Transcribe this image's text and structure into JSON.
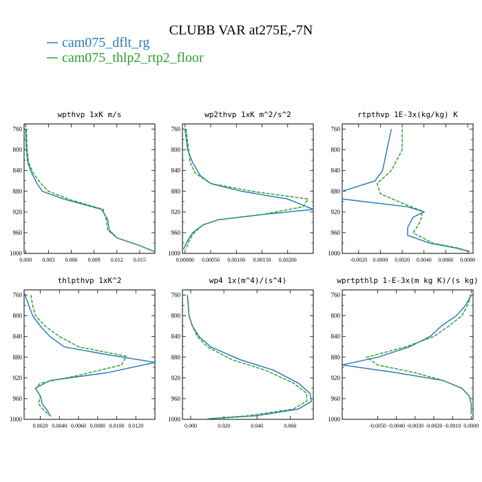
{
  "figure": {
    "title": "CLUBB VAR at275E,-7N",
    "legend": [
      {
        "name": "cam075_dflt_rg",
        "color": "#2b7bba",
        "dash": "solid"
      },
      {
        "name": "cam075_thlp2_rtp2_floor",
        "color": "#2ca02c",
        "dash": "dashed"
      }
    ]
  },
  "chart_data": [
    {
      "type": "line",
      "title": "wpthvp  1xK m/s",
      "xlim": [
        -0.0002,
        0.017
      ],
      "ylim": [
        1000,
        750
      ],
      "xticks": [
        0.0,
        0.003,
        0.006,
        0.009,
        0.012,
        0.015
      ],
      "xtick_labels": [
        "0.000",
        "0.003",
        "0.006",
        "0.009",
        "0.012",
        "0.015"
      ],
      "yticks": [
        760,
        800,
        840,
        880,
        920,
        960,
        1000
      ],
      "ytick_labels": [
        "760",
        "800",
        "840",
        "880",
        "920",
        "960",
        "1000"
      ],
      "series": [
        {
          "name": "cam075_dflt_rg",
          "points": [
            [
              0.0,
              760
            ],
            [
              0.0001,
              800
            ],
            [
              0.0003,
              825
            ],
            [
              0.0008,
              845
            ],
            [
              0.0015,
              865
            ],
            [
              0.0022,
              880
            ],
            [
              0.005,
              895
            ],
            [
              0.01,
              915
            ],
            [
              0.0108,
              935
            ],
            [
              0.011,
              955
            ],
            [
              0.012,
              970
            ],
            [
              0.015,
              985
            ],
            [
              0.017,
              997
            ]
          ]
        },
        {
          "name": "cam075_thlp2_rtp2_floor",
          "points": [
            [
              0.0001,
              760
            ],
            [
              0.0002,
              800
            ],
            [
              0.0004,
              825
            ],
            [
              0.001,
              845
            ],
            [
              0.002,
              865
            ],
            [
              0.003,
              880
            ],
            [
              0.006,
              897
            ],
            [
              0.0102,
              915
            ],
            [
              0.0106,
              935
            ],
            [
              0.0108,
              955
            ],
            [
              0.012,
              970
            ],
            [
              0.015,
              985
            ],
            [
              0.017,
              997
            ]
          ]
        }
      ]
    },
    {
      "type": "line",
      "title": "wp2thvp  1xK m^2/s^2",
      "xlim": [
        -5e-05,
        0.0025
      ],
      "ylim": [
        1000,
        750
      ],
      "xticks": [
        0.0,
        0.0005,
        0.001,
        0.0015,
        0.002
      ],
      "xtick_labels": [
        "0.00000",
        "0.00050",
        "0.00100",
        "0.00150",
        "0.00200"
      ],
      "yticks": [
        760,
        800,
        840,
        880,
        920,
        960,
        1000
      ],
      "ytick_labels": [
        "760",
        "800",
        "840",
        "880",
        "920",
        "960",
        "1000"
      ],
      "series": [
        {
          "name": "cam075_dflt_rg",
          "points": [
            [
              0.0,
              760
            ],
            [
              5e-05,
              800
            ],
            [
              0.00015,
              825
            ],
            [
              0.0003,
              850
            ],
            [
              0.0005,
              865
            ],
            [
              0.0011,
              880
            ],
            [
              0.002,
              895
            ],
            [
              0.0025,
              915
            ],
            [
              0.0015,
              925
            ],
            [
              0.00065,
              935
            ],
            [
              0.00035,
              945
            ],
            [
              0.00015,
              960
            ],
            [
              5e-05,
              975
            ],
            [
              -3e-05,
              992
            ]
          ]
        },
        {
          "name": "cam075_thlp2_rtp2_floor",
          "points": [
            [
              2e-05,
              760
            ],
            [
              7e-05,
              800
            ],
            [
              0.0001,
              825
            ],
            [
              0.0002,
              845
            ],
            [
              0.0005,
              865
            ],
            [
              0.0013,
              880
            ],
            [
              0.0024,
              895
            ],
            [
              0.0023,
              910
            ],
            [
              0.0015,
              925
            ],
            [
              0.00065,
              935
            ],
            [
              0.00035,
              945
            ],
            [
              0.00018,
              960
            ],
            [
              8e-05,
              975
            ],
            [
              2e-05,
              992
            ]
          ]
        }
      ]
    },
    {
      "type": "line",
      "title": "rtpthvp  1E-3x(kg/kg) K",
      "xlim": [
        -0.0035,
        0.0085
      ],
      "ylim": [
        1000,
        750
      ],
      "xticks": [
        -0.002,
        0.0,
        0.002,
        0.004,
        0.006,
        0.008
      ],
      "xtick_labels": [
        "-0.0020",
        "0.0000",
        "0.0020",
        "0.0040",
        "0.0060",
        "0.0080"
      ],
      "yticks": [
        760,
        800,
        840,
        880,
        920,
        960,
        1000
      ],
      "ytick_labels": [
        "760",
        "800",
        "840",
        "880",
        "920",
        "960",
        "1000"
      ],
      "series": [
        {
          "name": "cam075_dflt_rg",
          "points": [
            [
              0.001,
              760
            ],
            [
              0.0006,
              800
            ],
            [
              0.0002,
              840
            ],
            [
              -0.0005,
              860
            ],
            [
              -0.0035,
              880
            ],
            [
              -0.0035,
              895
            ],
            [
              0.0025,
              910
            ],
            [
              0.004,
              920
            ],
            [
              0.003,
              930
            ],
            [
              0.0025,
              950
            ],
            [
              0.0025,
              965
            ],
            [
              0.0045,
              980
            ],
            [
              0.007,
              990
            ],
            [
              0.0082,
              997
            ]
          ]
        },
        {
          "name": "cam075_thlp2_rtp2_floor",
          "points": [
            [
              0.002,
              760
            ],
            [
              0.002,
              800
            ],
            [
              0.001,
              840
            ],
            [
              -0.0003,
              865
            ],
            [
              0.0,
              885
            ],
            [
              0.002,
              903
            ],
            [
              0.0038,
              918
            ],
            [
              0.0038,
              930
            ],
            [
              0.0035,
              945
            ],
            [
              0.003,
              960
            ],
            [
              0.0048,
              980
            ],
            [
              0.0072,
              990
            ],
            [
              0.0082,
              997
            ]
          ]
        }
      ]
    },
    {
      "type": "line",
      "title": "thlpthvp  1xK^2",
      "xlim": [
        0.0003,
        0.014
      ],
      "ylim": [
        1000,
        750
      ],
      "xticks": [
        0.002,
        0.004,
        0.006,
        0.008,
        0.01,
        0.012
      ],
      "xtick_labels": [
        "0.0020",
        "0.0040",
        "0.0060",
        "0.0080",
        "0.0100",
        "0.0120"
      ],
      "yticks": [
        760,
        800,
        840,
        880,
        920,
        960,
        1000
      ],
      "ytick_labels": [
        "760",
        "800",
        "840",
        "880",
        "920",
        "960",
        "1000"
      ],
      "series": [
        {
          "name": "cam075_dflt_rg",
          "points": [
            [
              0.0003,
              755
            ],
            [
              0.0008,
              780
            ],
            [
              0.0012,
              800
            ],
            [
              0.002,
              820
            ],
            [
              0.003,
              840
            ],
            [
              0.0045,
              860
            ],
            [
              0.009,
              875
            ],
            [
              0.014,
              890
            ],
            [
              0.009,
              910
            ],
            [
              0.003,
              925
            ],
            [
              0.0015,
              940
            ],
            [
              0.002,
              955
            ],
            [
              0.0022,
              970
            ],
            [
              0.0028,
              985
            ],
            [
              0.003,
              993
            ]
          ]
        },
        {
          "name": "cam075_thlp2_rtp2_floor",
          "points": [
            [
              0.001,
              760
            ],
            [
              0.0012,
              780
            ],
            [
              0.0015,
              800
            ],
            [
              0.0025,
              820
            ],
            [
              0.004,
              840
            ],
            [
              0.006,
              860
            ],
            [
              0.011,
              878
            ],
            [
              0.0105,
              895
            ],
            [
              0.006,
              915
            ],
            [
              0.002,
              930
            ],
            [
              0.0015,
              940
            ],
            [
              0.002,
              955
            ],
            [
              0.0018,
              970
            ],
            [
              0.0025,
              985
            ],
            [
              0.0032,
              995
            ]
          ]
        }
      ]
    },
    {
      "type": "line",
      "title": "wp4  1x(m^4)/(s^4)",
      "xlim": [
        -0.005,
        0.074
      ],
      "ylim": [
        1000,
        750
      ],
      "xticks": [
        0.0,
        0.02,
        0.04,
        0.06
      ],
      "xtick_labels": [
        "0.000",
        "0.020",
        "0.040",
        "0.060"
      ],
      "yticks": [
        760,
        800,
        840,
        880,
        920,
        960,
        1000
      ],
      "ytick_labels": [
        "760",
        "800",
        "840",
        "880",
        "920",
        "960",
        "1000"
      ],
      "series": [
        {
          "name": "cam075_dflt_rg",
          "points": [
            [
              -0.002,
              760
            ],
            [
              -0.001,
              800
            ],
            [
              0.001,
              820
            ],
            [
              0.005,
              840
            ],
            [
              0.012,
              860
            ],
            [
              0.03,
              885
            ],
            [
              0.05,
              905
            ],
            [
              0.065,
              930
            ],
            [
              0.072,
              950
            ],
            [
              0.073,
              965
            ],
            [
              0.065,
              980
            ],
            [
              0.04,
              993
            ],
            [
              0.01,
              999
            ]
          ]
        },
        {
          "name": "cam075_thlp2_rtp2_floor",
          "points": [
            [
              -0.002,
              760
            ],
            [
              -0.001,
              800
            ],
            [
              0.001,
              820
            ],
            [
              0.004,
              840
            ],
            [
              0.01,
              860
            ],
            [
              0.025,
              885
            ],
            [
              0.045,
              905
            ],
            [
              0.062,
              930
            ],
            [
              0.07,
              950
            ],
            [
              0.07,
              965
            ],
            [
              0.062,
              980
            ],
            [
              0.035,
              993
            ],
            [
              0.01,
              999
            ]
          ]
        }
      ]
    },
    {
      "type": "line",
      "title": "wprtpthlp  1-E-3x(m kg K)/(s kg)",
      "xlim": [
        -0.0069,
        0.0001
      ],
      "ylim": [
        1000,
        750
      ],
      "xticks": [
        -0.005,
        -0.004,
        -0.003,
        -0.002,
        -0.001,
        0.0
      ],
      "xtick_labels": [
        "-0.0050",
        "-0.0040",
        "-0.0030",
        "-0.0020",
        "-0.0010",
        "0.0000"
      ],
      "yticks": [
        760,
        800,
        840,
        880,
        920,
        960,
        1000
      ],
      "ytick_labels": [
        "760",
        "800",
        "840",
        "880",
        "920",
        "960",
        "1000"
      ],
      "series": [
        {
          "name": "cam075_dflt_rg",
          "points": [
            [
              0.0,
              760
            ],
            [
              -0.0003,
              780
            ],
            [
              -0.0008,
              800
            ],
            [
              -0.0016,
              820
            ],
            [
              -0.0022,
              840
            ],
            [
              -0.0033,
              860
            ],
            [
              -0.005,
              880
            ],
            [
              -0.0069,
              895
            ],
            [
              -0.004,
              910
            ],
            [
              -0.0015,
              925
            ],
            [
              -0.0005,
              940
            ],
            [
              -0.0001,
              955
            ],
            [
              0.0,
              970
            ],
            [
              0.0,
              990
            ]
          ]
        },
        {
          "name": "cam075_thlp2_rtp2_floor",
          "points": [
            [
              0.0,
              760
            ],
            [
              -0.0002,
              780
            ],
            [
              -0.0005,
              800
            ],
            [
              -0.0012,
              820
            ],
            [
              -0.002,
              840
            ],
            [
              -0.0035,
              860
            ],
            [
              -0.0056,
              880
            ],
            [
              -0.005,
              895
            ],
            [
              -0.003,
              910
            ],
            [
              -0.0015,
              925
            ],
            [
              -0.0005,
              940
            ],
            [
              -0.0001,
              955
            ],
            [
              0.0,
              970
            ],
            [
              0.0,
              990
            ]
          ]
        }
      ]
    }
  ]
}
